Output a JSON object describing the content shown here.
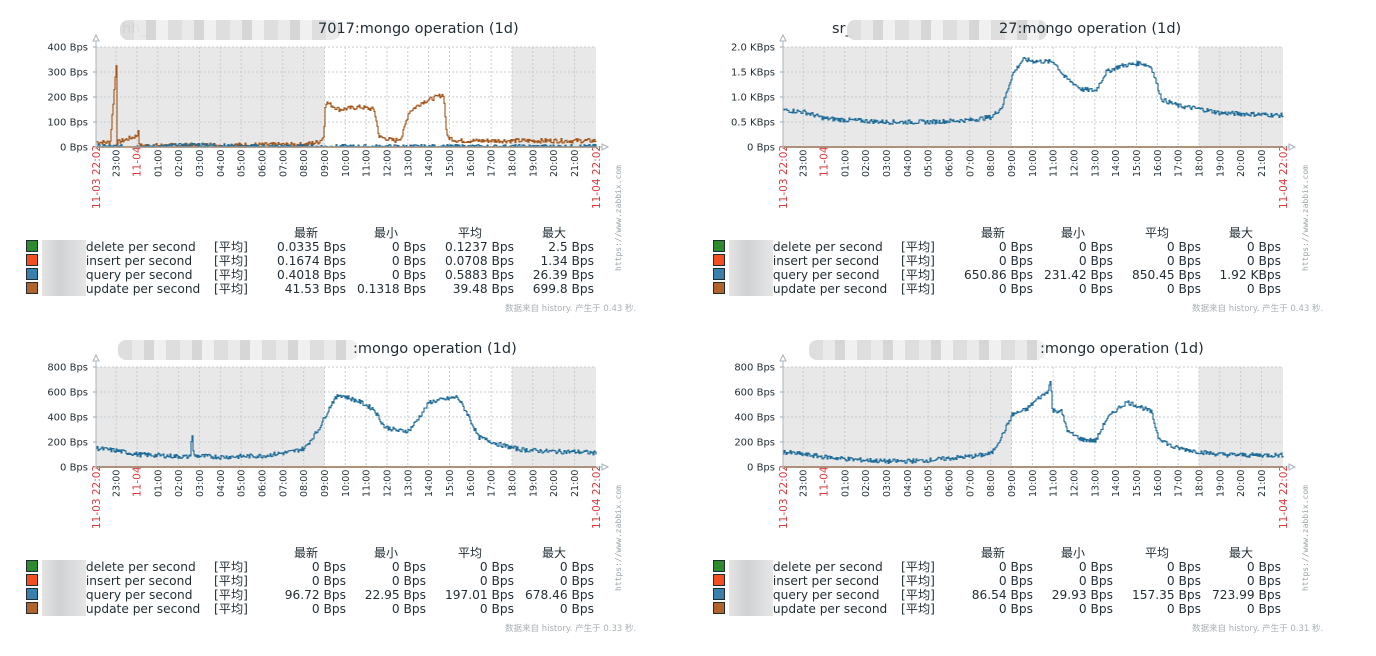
{
  "common": {
    "time_axis": {
      "start_label": "11-03 22:02",
      "end_label": "11-04 22:02",
      "date_mark_label": "11-04",
      "start_minute_of_day": 1322,
      "duration_minutes": 1440,
      "hour_labels": [
        "23:00",
        "11-04",
        "01:00",
        "02:00",
        "03:00",
        "04:00",
        "05:00",
        "06:00",
        "07:00",
        "08:00",
        "09:00",
        "10:00",
        "11:00",
        "12:00",
        "13:00",
        "14:00",
        "15:00",
        "16:00",
        "17:00",
        "18:00",
        "19:00",
        "20:00",
        "21:00"
      ],
      "work_hours": {
        "start": "09:00",
        "end": "18:00"
      }
    },
    "watermark": "https://www.zabbix.com",
    "legend_headers": [
      "最新",
      "最小",
      "平均",
      "最大"
    ],
    "func_label": "[平均]",
    "series_colors": {
      "delete": "#2f8a2f",
      "insert": "#f24e1f",
      "query": "#3b7fad",
      "update": "#b0642c"
    },
    "line_colors": {
      "query": "#1f6c99",
      "update": "#a3561a"
    }
  },
  "chart_data": [
    {
      "type": "line",
      "title": "mongo operation (1d)",
      "title_visible_prefix": "hh_",
      "title_visible_suffix": "7017:mongo operation (1d)",
      "y_unit": "Bps",
      "yticks": [
        "0 Bps",
        "100 Bps",
        "200 Bps",
        "300 Bps",
        "400 Bps"
      ],
      "ylim": [
        0,
        400
      ],
      "grid": true,
      "series": [
        {
          "name": "delete per second",
          "key": "delete",
          "last": "0.0335 Bps",
          "min": "0 Bps",
          "avg": "0.1237 Bps",
          "max": "2.5 Bps",
          "points": [
            [
              0,
              0
            ],
            [
              1440,
              0
            ]
          ]
        },
        {
          "name": "insert per second",
          "key": "insert",
          "last": "0.1674 Bps",
          "min": "0 Bps",
          "avg": "0.0708 Bps",
          "max": "1.34 Bps",
          "points": [
            [
              0,
              0
            ],
            [
              1440,
              0
            ]
          ]
        },
        {
          "name": "query per second",
          "key": "query",
          "last": "0.4018 Bps",
          "min": "0 Bps",
          "avg": "0.5883 Bps",
          "max": "26.39 Bps",
          "points": [
            [
              0,
              1
            ],
            [
              180,
              1
            ],
            [
              250,
              6
            ],
            [
              310,
              10
            ],
            [
              360,
              4
            ],
            [
              420,
              1
            ],
            [
              1440,
              1
            ]
          ]
        },
        {
          "name": "update per second",
          "key": "update",
          "last": "41.53 Bps",
          "min": "0.1318 Bps",
          "avg": "39.48 Bps",
          "max": "699.8 Bps",
          "points": [
            [
              0,
              20
            ],
            [
              40,
              18
            ],
            [
              58,
              338
            ],
            [
              60,
              18
            ],
            [
              118,
              45
            ],
            [
              120,
              105
            ],
            [
              123,
              5
            ],
            [
              600,
              10
            ],
            [
              640,
              20
            ],
            [
              655,
              40
            ],
            [
              660,
              180
            ],
            [
              700,
              150
            ],
            [
              760,
              160
            ],
            [
              800,
              150
            ],
            [
              815,
              40
            ],
            [
              860,
              25
            ],
            [
              880,
              40
            ],
            [
              900,
              140
            ],
            [
              940,
              180
            ],
            [
              980,
              200
            ],
            [
              1000,
              210
            ],
            [
              1010,
              40
            ],
            [
              1040,
              25
            ],
            [
              1440,
              25
            ]
          ]
        }
      ],
      "footer": "数据来自 history. 产生于 0.43 秒."
    },
    {
      "type": "line",
      "title": "mongo operation (1d)",
      "title_visible_prefix": "sr_",
      "title_visible_suffix": "27:mongo operation (1d)",
      "y_unit": "Bps",
      "yticks": [
        "0 Bps",
        "0.5 KBps",
        "1.0 KBps",
        "1.5 KBps",
        "2.0 KBps"
      ],
      "ylim": [
        0,
        2000
      ],
      "grid": true,
      "series": [
        {
          "name": "delete per second",
          "key": "delete",
          "last": "0 Bps",
          "min": "0 Bps",
          "avg": "0 Bps",
          "max": "0 Bps",
          "points": [
            [
              0,
              0
            ],
            [
              1440,
              0
            ]
          ]
        },
        {
          "name": "insert per second",
          "key": "insert",
          "last": "0 Bps",
          "min": "0 Bps",
          "avg": "0 Bps",
          "max": "0 Bps",
          "points": [
            [
              0,
              0
            ],
            [
              1440,
              0
            ]
          ]
        },
        {
          "name": "query per second",
          "key": "query",
          "last": "650.86 Bps",
          "min": "231.42 Bps",
          "avg": "850.45 Bps",
          "max": "1.92 KBps",
          "points": [
            [
              0,
              740
            ],
            [
              60,
              700
            ],
            [
              120,
              570
            ],
            [
              180,
              540
            ],
            [
              240,
              520
            ],
            [
              300,
              500
            ],
            [
              420,
              500
            ],
            [
              540,
              540
            ],
            [
              600,
              600
            ],
            [
              630,
              800
            ],
            [
              660,
              1450
            ],
            [
              690,
              1750
            ],
            [
              720,
              1720
            ],
            [
              780,
              1700
            ],
            [
              810,
              1400
            ],
            [
              860,
              1150
            ],
            [
              900,
              1130
            ],
            [
              930,
              1500
            ],
            [
              970,
              1620
            ],
            [
              1030,
              1680
            ],
            [
              1060,
              1600
            ],
            [
              1090,
              950
            ],
            [
              1140,
              820
            ],
            [
              1200,
              760
            ],
            [
              1260,
              680
            ],
            [
              1380,
              650
            ],
            [
              1440,
              630
            ]
          ]
        },
        {
          "name": "update per second",
          "key": "update",
          "last": "0 Bps",
          "min": "0 Bps",
          "avg": "0 Bps",
          "max": "0 Bps",
          "points": [
            [
              0,
              0
            ],
            [
              1440,
              0
            ]
          ]
        }
      ],
      "footer": "数据来自 history. 产生于 0.43 秒."
    },
    {
      "type": "line",
      "title": "mongo operation (1d)",
      "title_visible_prefix": "",
      "title_visible_suffix": ":mongo operation (1d)",
      "y_unit": "Bps",
      "yticks": [
        "0 Bps",
        "200 Bps",
        "400 Bps",
        "600 Bps",
        "800 Bps"
      ],
      "ylim": [
        0,
        800
      ],
      "grid": true,
      "series": [
        {
          "name": "delete per second",
          "key": "delete",
          "last": "0 Bps",
          "min": "0 Bps",
          "avg": "0 Bps",
          "max": "0 Bps",
          "points": [
            [
              0,
              0
            ],
            [
              1440,
              0
            ]
          ]
        },
        {
          "name": "insert per second",
          "key": "insert",
          "last": "0 Bps",
          "min": "0 Bps",
          "avg": "0 Bps",
          "max": "0 Bps",
          "points": [
            [
              0,
              0
            ],
            [
              1440,
              0
            ]
          ]
        },
        {
          "name": "query per second",
          "key": "query",
          "last": "96.72 Bps",
          "min": "22.95 Bps",
          "avg": "197.01 Bps",
          "max": "678.46 Bps",
          "points": [
            [
              0,
              150
            ],
            [
              60,
              130
            ],
            [
              120,
              100
            ],
            [
              200,
              90
            ],
            [
              270,
              80
            ],
            [
              276,
              280
            ],
            [
              280,
              90
            ],
            [
              360,
              80
            ],
            [
              480,
              90
            ],
            [
              560,
              120
            ],
            [
              600,
              150
            ],
            [
              640,
              300
            ],
            [
              680,
              520
            ],
            [
              700,
              580
            ],
            [
              760,
              520
            ],
            [
              800,
              460
            ],
            [
              830,
              320
            ],
            [
              870,
              290
            ],
            [
              900,
              290
            ],
            [
              920,
              360
            ],
            [
              960,
              520
            ],
            [
              1000,
              540
            ],
            [
              1040,
              560
            ],
            [
              1070,
              420
            ],
            [
              1100,
              240
            ],
            [
              1160,
              180
            ],
            [
              1220,
              140
            ],
            [
              1300,
              125
            ],
            [
              1400,
              120
            ],
            [
              1440,
              110
            ]
          ]
        },
        {
          "name": "update per second",
          "key": "update",
          "last": "0 Bps",
          "min": "0 Bps",
          "avg": "0 Bps",
          "max": "0 Bps",
          "points": [
            [
              0,
              0
            ],
            [
              1440,
              0
            ]
          ]
        }
      ],
      "footer": "数据来自 history. 产生于 0.33 秒."
    },
    {
      "type": "line",
      "title": "mongo operation (1d)",
      "title_visible_prefix": "",
      "title_visible_suffix": ":mongo operation (1d)",
      "y_unit": "Bps",
      "yticks": [
        "0 Bps",
        "200 Bps",
        "400 Bps",
        "600 Bps",
        "800 Bps"
      ],
      "ylim": [
        0,
        800
      ],
      "grid": true,
      "series": [
        {
          "name": "delete per second",
          "key": "delete",
          "last": "0 Bps",
          "min": "0 Bps",
          "avg": "0 Bps",
          "max": "0 Bps",
          "points": [
            [
              0,
              0
            ],
            [
              1440,
              0
            ]
          ]
        },
        {
          "name": "insert per second",
          "key": "insert",
          "last": "0 Bps",
          "min": "0 Bps",
          "avg": "0 Bps",
          "max": "0 Bps",
          "points": [
            [
              0,
              0
            ],
            [
              1440,
              0
            ]
          ]
        },
        {
          "name": "query per second",
          "key": "query",
          "last": "86.54 Bps",
          "min": "29.93 Bps",
          "avg": "157.35 Bps",
          "max": "723.99 Bps",
          "points": [
            [
              0,
              120
            ],
            [
              60,
              100
            ],
            [
              120,
              80
            ],
            [
              200,
              60
            ],
            [
              300,
              45
            ],
            [
              400,
              50
            ],
            [
              480,
              70
            ],
            [
              560,
              90
            ],
            [
              600,
              110
            ],
            [
              630,
              250
            ],
            [
              660,
              420
            ],
            [
              700,
              460
            ],
            [
              730,
              540
            ],
            [
              760,
              600
            ],
            [
              770,
              690
            ],
            [
              775,
              450
            ],
            [
              800,
              450
            ],
            [
              820,
              280
            ],
            [
              860,
              220
            ],
            [
              900,
              210
            ],
            [
              930,
              380
            ],
            [
              960,
              460
            ],
            [
              990,
              520
            ],
            [
              1030,
              480
            ],
            [
              1060,
              440
            ],
            [
              1080,
              240
            ],
            [
              1120,
              160
            ],
            [
              1200,
              120
            ],
            [
              1260,
              100
            ],
            [
              1340,
              95
            ],
            [
              1440,
              95
            ]
          ]
        },
        {
          "name": "update per second",
          "key": "update",
          "last": "0 Bps",
          "min": "0 Bps",
          "avg": "0 Bps",
          "max": "0 Bps",
          "points": [
            [
              0,
              0
            ],
            [
              1440,
              0
            ]
          ]
        }
      ],
      "footer": "数据来自 history. 产生于 0.31 秒."
    }
  ]
}
